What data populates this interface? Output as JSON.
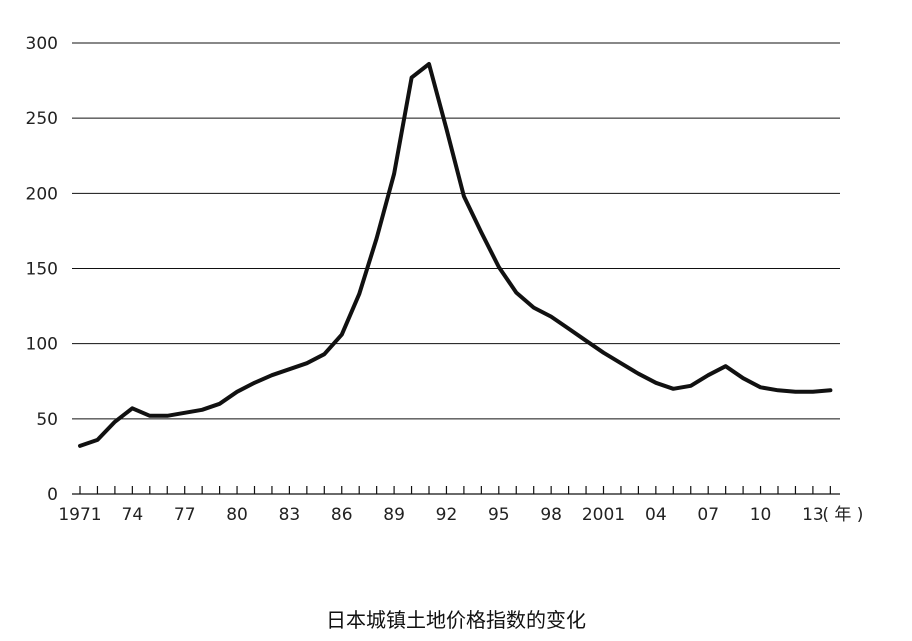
{
  "chart_data": {
    "type": "line",
    "title": "日本城镇土地价格指数的变化",
    "xlabel": "年",
    "ylabel": "",
    "ylim": [
      0,
      300
    ],
    "xlim": [
      1971,
      2014
    ],
    "grid": true,
    "y_ticks": [
      0,
      50,
      100,
      150,
      200,
      250,
      300
    ],
    "y_tick_labels": [
      "0",
      "50",
      "100",
      "150",
      "200",
      "250",
      "300"
    ],
    "x_tick_labels": [
      {
        "x": 1971,
        "label": "1971"
      },
      {
        "x": 1974,
        "label": "74"
      },
      {
        "x": 1977,
        "label": "77"
      },
      {
        "x": 1980,
        "label": "80"
      },
      {
        "x": 1983,
        "label": "83"
      },
      {
        "x": 1986,
        "label": "86"
      },
      {
        "x": 1989,
        "label": "89"
      },
      {
        "x": 1992,
        "label": "92"
      },
      {
        "x": 1995,
        "label": "95"
      },
      {
        "x": 1998,
        "label": "98"
      },
      {
        "x": 2001,
        "label": "2001"
      },
      {
        "x": 2004,
        "label": "04"
      },
      {
        "x": 2007,
        "label": "07"
      },
      {
        "x": 2010,
        "label": "10"
      },
      {
        "x": 2013,
        "label": "13"
      }
    ],
    "x_unit_label": "( 年 )",
    "series": [
      {
        "x": [
          1971,
          1972,
          1973,
          1974,
          1975,
          1976,
          1977,
          1978,
          1979,
          1980,
          1981,
          1982,
          1983,
          1984,
          1985,
          1986,
          1987,
          1988,
          1989,
          1990,
          1991,
          1992,
          1993,
          1994,
          1995,
          1996,
          1997,
          1998,
          1999,
          2000,
          2001,
          2002,
          2003,
          2004,
          2005,
          2006,
          2007,
          2008,
          2009,
          2010,
          2011,
          2012,
          2013,
          2014
        ],
        "values": [
          32,
          36,
          48,
          57,
          52,
          52,
          54,
          56,
          60,
          68,
          74,
          79,
          83,
          87,
          93,
          106,
          133,
          170,
          213,
          277,
          286,
          243,
          198,
          174,
          151,
          134,
          124,
          118,
          110,
          102,
          94,
          87,
          80,
          74,
          70,
          72,
          79,
          85,
          77,
          71,
          69,
          68,
          68,
          69
        ]
      }
    ]
  },
  "caption": "日本城镇土地价格指数的变化"
}
